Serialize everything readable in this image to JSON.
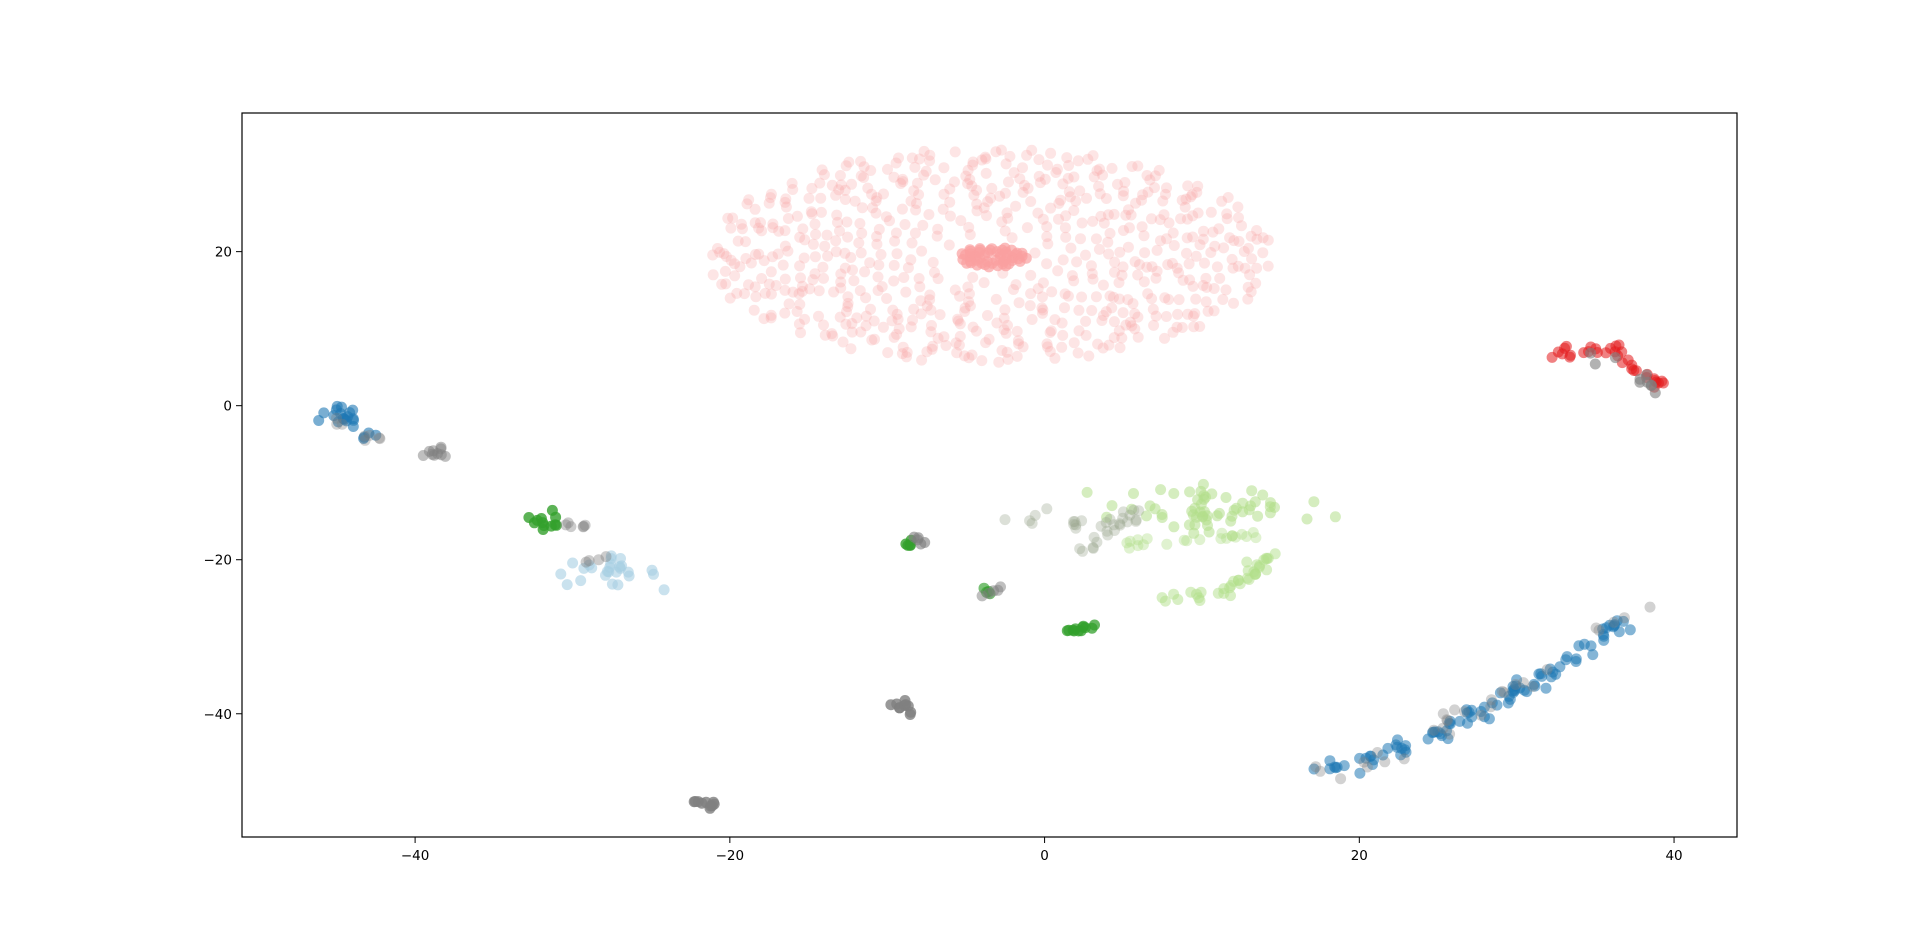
{
  "chart_data": {
    "type": "scatter",
    "title": "",
    "xlabel": "",
    "ylabel": "",
    "xlim": [
      -51,
      44
    ],
    "ylim": [
      -56,
      38
    ],
    "xticks": [
      -40,
      -20,
      0,
      20,
      40
    ],
    "xtick_labels": [
      "−40",
      "−20",
      "0",
      "20",
      "40"
    ],
    "yticks": [
      20,
      0,
      -20,
      -40
    ],
    "ytick_labels": [
      "20",
      "0",
      "−20",
      "−40"
    ],
    "grid": false,
    "legend": "none",
    "colors": {
      "light_red": "#f9a0a0",
      "red": "#e31a1c",
      "blue": "#1f78b4",
      "light_blue": "#a6cee3",
      "green": "#33a02c",
      "light_green": "#b2df8a",
      "gray": "#7f7f7f"
    },
    "clusters": [
      {
        "id": "pink-spiral-halo",
        "color": "#f9a0a0",
        "shape": "ring",
        "center": [
          -3.5,
          19.5
        ],
        "radii_x": [
          2.5,
          18
        ],
        "radii_y": [
          1.6,
          14
        ],
        "count": 640,
        "opacity": 0.28
      },
      {
        "id": "pink-spiral-core",
        "color": "#f9a0a0",
        "shape": "ring",
        "center": [
          -3.3,
          19.3
        ],
        "radii_x": [
          0.3,
          2.2
        ],
        "radii_y": [
          0.2,
          1.3
        ],
        "count": 50,
        "opacity": 0.7
      },
      {
        "id": "red-trail",
        "color": "#e31a1c",
        "shape": "poly",
        "points": [
          [
            32.6,
            7
          ],
          [
            34.5,
            7
          ],
          [
            36.2,
            7.6
          ],
          [
            37.5,
            4.5
          ],
          [
            39.5,
            2.6
          ]
        ],
        "jitter": 0.3,
        "count": 34,
        "opacity": 0.55
      },
      {
        "id": "gray-near-red",
        "color": "#7f7f7f",
        "shape": "poly",
        "points": [
          [
            35,
            6.5
          ],
          [
            37.5,
            4
          ],
          [
            39,
            1.5
          ]
        ],
        "jitter": 0.4,
        "count": 10,
        "opacity": 0.6
      },
      {
        "id": "blue-left",
        "color": "#1f78b4",
        "shape": "poly",
        "points": [
          [
            -46.3,
            -1.8
          ],
          [
            -44.6,
            -0.5
          ],
          [
            -44.3,
            -1.6
          ],
          [
            -42.3,
            -4.3
          ]
        ],
        "jitter": 0.35,
        "count": 22,
        "opacity": 0.6
      },
      {
        "id": "gray-left",
        "color": "#7f7f7f",
        "shape": "poly",
        "points": [
          [
            -45.3,
            -2
          ],
          [
            -43.6,
            -3.6
          ],
          [
            -42.5,
            -4.2
          ]
        ],
        "jitter": 0.3,
        "count": 8,
        "opacity": 0.35
      },
      {
        "id": "gray-left-2",
        "color": "#7f7f7f",
        "shape": "poly",
        "points": [
          [
            -39.3,
            -6.7
          ],
          [
            -38.2,
            -5.7
          ],
          [
            -38.4,
            -7.3
          ]
        ],
        "jitter": 0.3,
        "count": 10,
        "opacity": 0.5
      },
      {
        "id": "green-a",
        "color": "#33a02c",
        "shape": "poly",
        "points": [
          [
            -31.6,
            -13.8
          ],
          [
            -32.3,
            -15
          ],
          [
            -31,
            -15.8
          ]
        ],
        "jitter": 0.3,
        "count": 12,
        "opacity": 0.8
      },
      {
        "id": "gray-a",
        "color": "#7f7f7f",
        "shape": "poly",
        "points": [
          [
            -30.3,
            -15.4
          ],
          [
            -29.2,
            -15.5
          ]
        ],
        "jitter": 0.2,
        "count": 6,
        "opacity": 0.4
      },
      {
        "id": "light-blue-a",
        "color": "#a6cee3",
        "shape": "blob",
        "center": [
          -28,
          -21.6
        ],
        "spread": [
          1.7,
          0.9
        ],
        "count": 26,
        "opacity": 0.6
      },
      {
        "id": "gray-a-2",
        "color": "#7f7f7f",
        "shape": "poly",
        "points": [
          [
            -29.8,
            -20.8
          ],
          [
            -27.8,
            -19.6
          ]
        ],
        "jitter": 0.2,
        "count": 4,
        "opacity": 0.4
      },
      {
        "id": "green-b",
        "color": "#33a02c",
        "shape": "poly",
        "points": [
          [
            -8.7,
            -17.8
          ],
          [
            -8,
            -18.7
          ]
        ],
        "jitter": 0.25,
        "count": 5,
        "opacity": 0.8
      },
      {
        "id": "gray-b",
        "color": "#7f7f7f",
        "shape": "poly",
        "points": [
          [
            -8.3,
            -17.2
          ],
          [
            -7.9,
            -17.8
          ]
        ],
        "jitter": 0.2,
        "count": 5,
        "opacity": 0.6
      },
      {
        "id": "green-c",
        "color": "#33a02c",
        "shape": "poly",
        "points": [
          [
            -4,
            -24
          ],
          [
            -3.4,
            -24.2
          ]
        ],
        "jitter": 0.2,
        "count": 4,
        "opacity": 0.65
      },
      {
        "id": "gray-c",
        "color": "#7f7f7f",
        "shape": "poly",
        "points": [
          [
            -4.3,
            -25.2
          ],
          [
            -2.5,
            -23.6
          ]
        ],
        "jitter": 0.25,
        "count": 5,
        "opacity": 0.5
      },
      {
        "id": "green-d",
        "color": "#33a02c",
        "shape": "poly",
        "points": [
          [
            0.8,
            -28.7
          ],
          [
            1.5,
            -29.2
          ],
          [
            2.8,
            -28.8
          ],
          [
            3.6,
            -28.5
          ]
        ],
        "jitter": 0.2,
        "count": 12,
        "opacity": 0.75
      },
      {
        "id": "gray-d",
        "color": "#7f7f7f",
        "shape": "poly",
        "points": [
          [
            -9.7,
            -38.9
          ],
          [
            -8.8,
            -38.8
          ],
          [
            -8.9,
            -39.9
          ]
        ],
        "jitter": 0.25,
        "count": 10,
        "opacity": 0.8
      },
      {
        "id": "gray-e",
        "color": "#7f7f7f",
        "shape": "poly",
        "points": [
          [
            -22.3,
            -51.2
          ],
          [
            -21.5,
            -52
          ],
          [
            -20.9,
            -51.6
          ]
        ],
        "jitter": 0.2,
        "count": 10,
        "opacity": 0.8
      },
      {
        "id": "light-green-upper",
        "color": "#b2df8a",
        "shape": "blob",
        "center": [
          10.5,
          -13.5
        ],
        "spread": [
          2.6,
          1.6
        ],
        "count": 60,
        "opacity": 0.55
      },
      {
        "id": "light-green-arc",
        "color": "#b2df8a",
        "shape": "poly",
        "points": [
          [
            7.5,
            -25
          ],
          [
            11,
            -24.5
          ],
          [
            12.5,
            -23
          ],
          [
            14.8,
            -19
          ]
        ],
        "jitter": 0.35,
        "count": 36,
        "opacity": 0.5
      },
      {
        "id": "light-green-mid",
        "color": "#b2df8a",
        "shape": "poly",
        "points": [
          [
            5,
            -18
          ],
          [
            9,
            -17.5
          ],
          [
            13,
            -16.5
          ]
        ],
        "jitter": 0.4,
        "count": 20,
        "opacity": 0.4
      },
      {
        "id": "gray-green-mix",
        "color": "#9aa78f",
        "shape": "poly",
        "points": [
          [
            -2.2,
            -15.5
          ],
          [
            0,
            -14
          ],
          [
            2,
            -15.3
          ],
          [
            3,
            -18.5
          ],
          [
            5,
            -13
          ],
          [
            6,
            -12.5
          ],
          [
            2.5,
            -19.5
          ]
        ],
        "jitter": 0.5,
        "count": 34,
        "opacity": 0.35
      },
      {
        "id": "blue-arc",
        "color": "#1f78b4",
        "shape": "poly",
        "points": [
          [
            17.2,
            -46
          ],
          [
            19,
            -47.5
          ],
          [
            21.5,
            -45.5
          ],
          [
            24.5,
            -42.5
          ],
          [
            27.5,
            -40
          ],
          [
            32,
            -34.5
          ],
          [
            35,
            -30.5
          ],
          [
            36.5,
            -28.3
          ]
        ],
        "jitter": 0.55,
        "count": 95,
        "opacity": 0.55
      },
      {
        "id": "gray-arc",
        "color": "#7f7f7f",
        "shape": "poly",
        "points": [
          [
            16,
            -45.8
          ],
          [
            18,
            -48.5
          ],
          [
            24,
            -43
          ],
          [
            28.7,
            -37
          ],
          [
            31,
            -35.5
          ],
          [
            34,
            -31
          ],
          [
            37,
            -27.5
          ],
          [
            37.9,
            -26
          ]
        ],
        "jitter": 0.45,
        "count": 30,
        "opacity": 0.35
      }
    ]
  }
}
